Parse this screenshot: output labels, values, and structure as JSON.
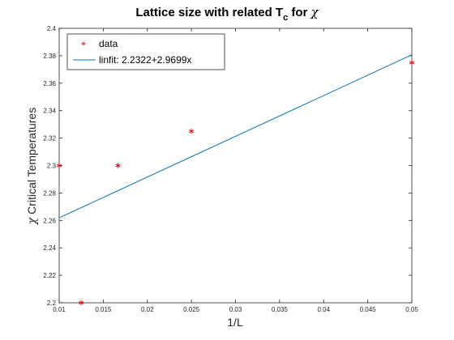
{
  "chart_data": {
    "type": "scatter",
    "title": "Lattice size with related T",
    "title_subscript": "c",
    "title_suffix": "for",
    "title_symbol": "χ",
    "xlabel": "1/L",
    "ylabel_symbol": "χ",
    "ylabel": "Critical Temperatures",
    "xlim": [
      0.01,
      0.05
    ],
    "ylim": [
      2.2,
      2.4
    ],
    "x_ticks": [
      "0.01",
      "0.015",
      "0.02",
      "0.025",
      "0.03",
      "0.035",
      "0.04",
      "0.045",
      "0.05"
    ],
    "y_ticks": [
      "2.2",
      "2.22",
      "2.24",
      "2.26",
      "2.28",
      "2.3",
      "2.32",
      "2.34",
      "2.36",
      "2.38",
      "2.4"
    ],
    "grid": false,
    "legend_position": "top-left",
    "series": [
      {
        "name": "data",
        "kind": "scatter",
        "marker": "*",
        "color": "#ff0000",
        "x": [
          0.01,
          0.0125,
          0.01667,
          0.025,
          0.05
        ],
        "y": [
          2.3,
          2.2,
          2.3,
          2.325,
          2.375
        ]
      },
      {
        "name": "linfit: 2.2322+2.9699x",
        "kind": "line",
        "color": "#0072bd",
        "intercept": 2.2322,
        "slope": 2.9699
      }
    ]
  }
}
